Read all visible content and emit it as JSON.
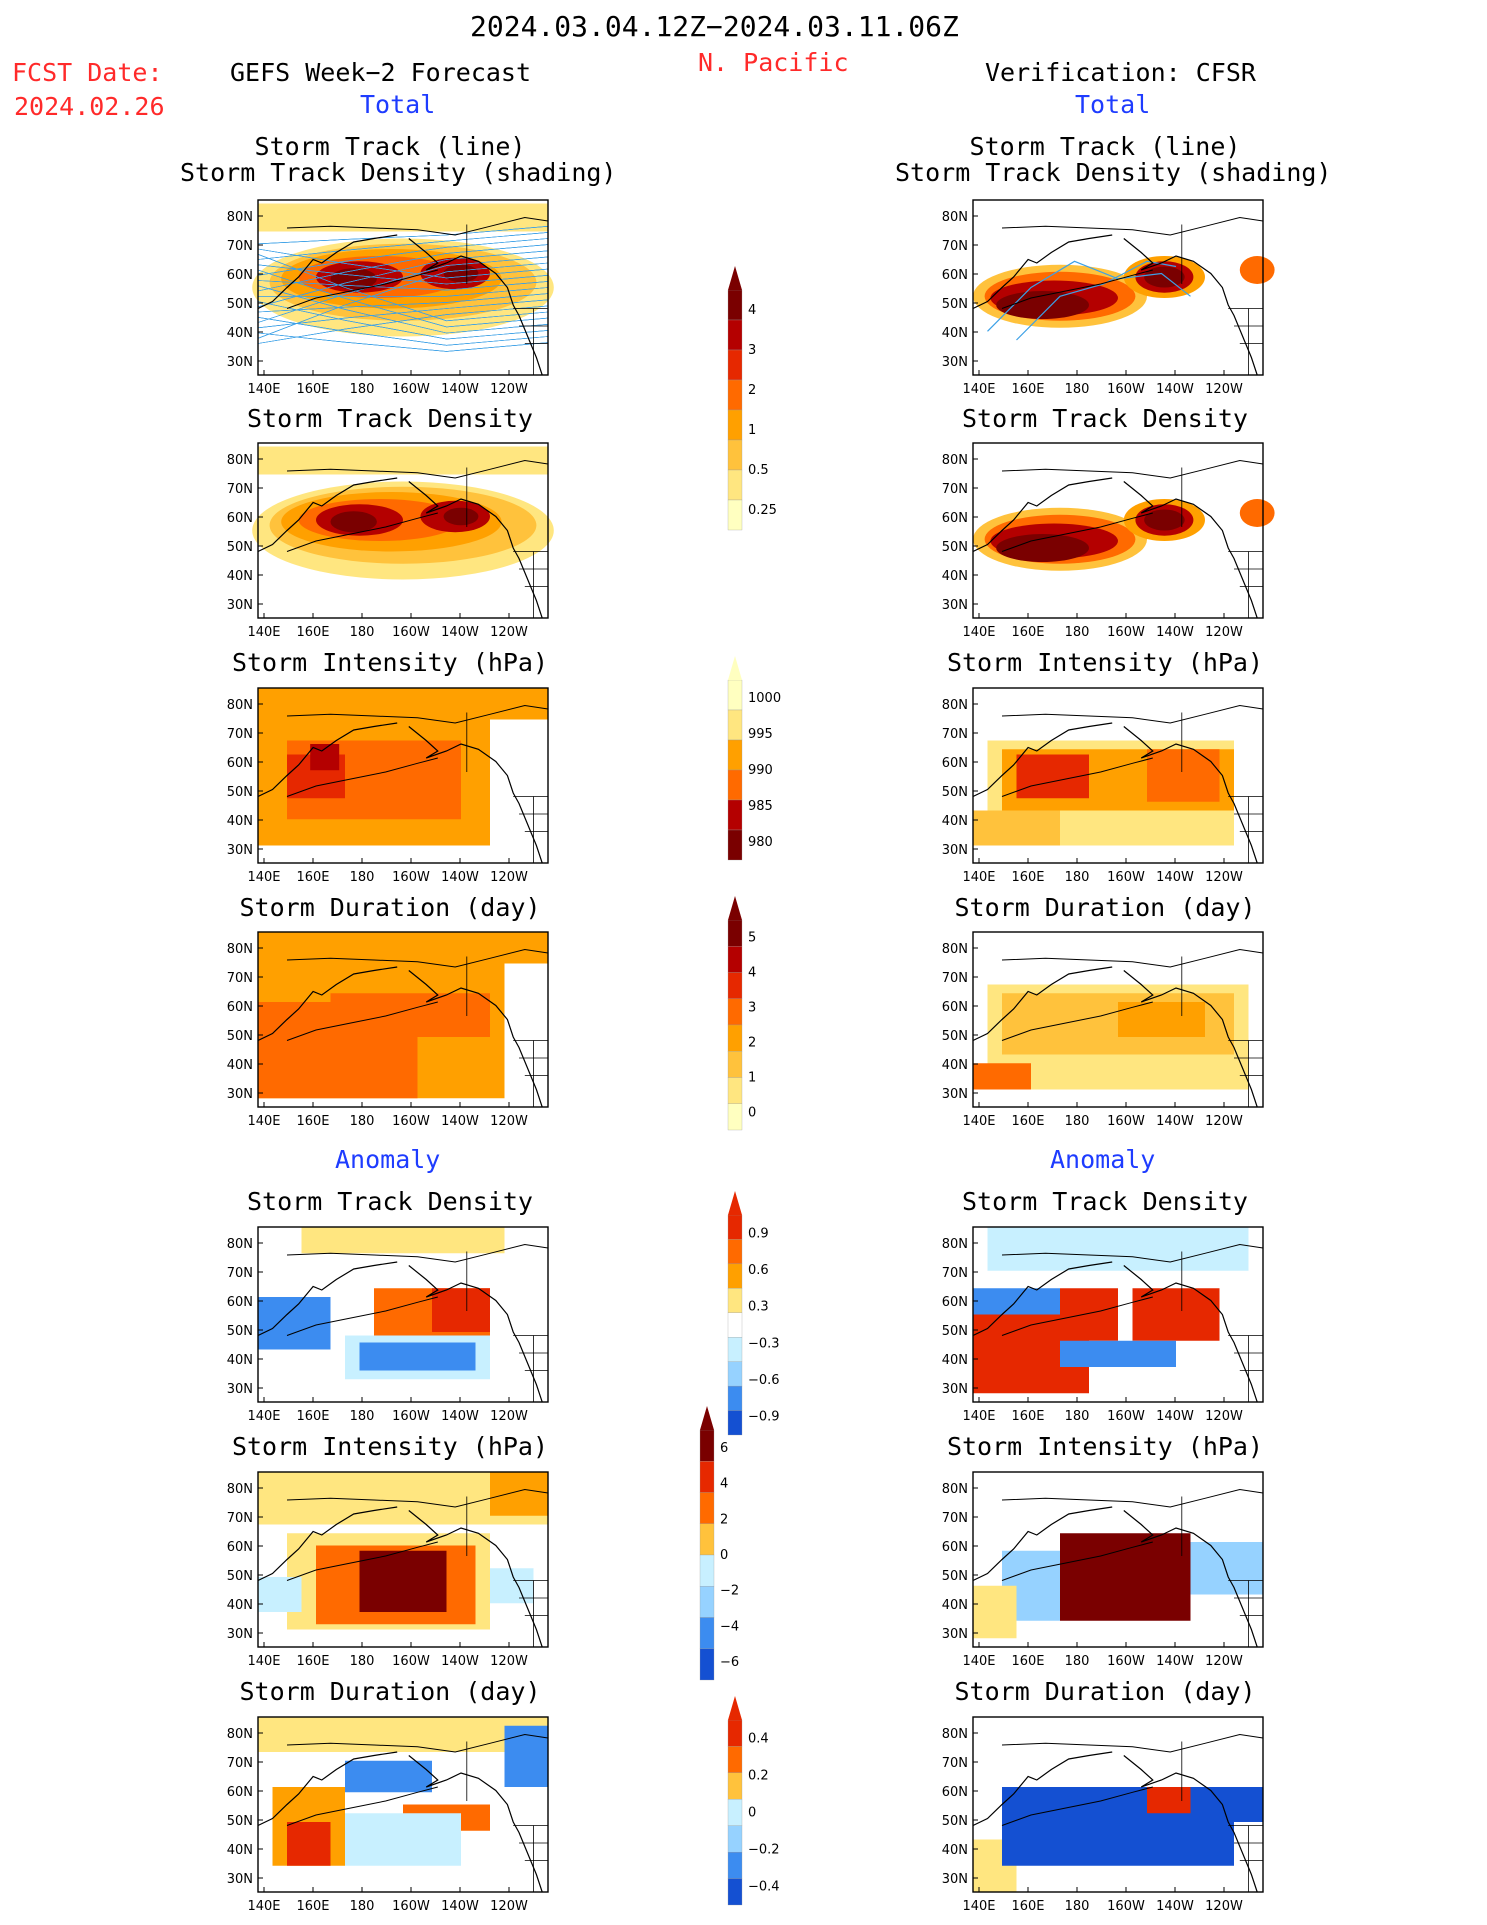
{
  "header": {
    "date_range": "2024.03.04.12Z−2024.03.11.06Z",
    "region": "N. Pacific",
    "fcst_label": "FCST Date:",
    "fcst_date": "2024.02.26",
    "left_title": "GEFS Week−2 Forecast",
    "right_title": "Verification: CFSR",
    "total_label": "Total",
    "anomaly_label": "Anomaly"
  },
  "panels": {
    "track_line_1": "Storm Track (line)",
    "track_line_2": "Storm Track Density (shading)",
    "track_density": "Storm Track Density",
    "intensity": "Storm Intensity (hPa)",
    "duration": "Storm Duration (day)"
  },
  "axes": {
    "lat_labels": [
      "80N",
      "70N",
      "60N",
      "50N",
      "40N",
      "30N"
    ],
    "lon_labels": [
      "140E",
      "160E",
      "180",
      "160W",
      "140W",
      "120W"
    ]
  },
  "colorbars": {
    "density": [
      "0.25",
      "0.5",
      "1",
      "2",
      "3",
      "4"
    ],
    "intensity": [
      "1000",
      "995",
      "990",
      "985",
      "980"
    ],
    "duration": [
      "0",
      "1",
      "2",
      "3",
      "4",
      "5"
    ],
    "anom_density": [
      "0.9",
      "0.6",
      "0.3",
      "−0.3",
      "−0.6",
      "−0.9"
    ],
    "anom_intensity": [
      "6",
      "4",
      "2",
      "0",
      "−2",
      "−4",
      "−6"
    ],
    "anom_duration": [
      "0.4",
      "0.2",
      "0",
      "−0.2",
      "−0.4"
    ]
  },
  "colors": {
    "warm": [
      "#ffffc0",
      "#ffe680",
      "#ffc23c",
      "#ffa000",
      "#ff6a00",
      "#e62800",
      "#b40000",
      "#7a0000"
    ],
    "cool": [
      "#c8f0ff",
      "#96d2ff",
      "#3c8cf0",
      "#1450d2"
    ],
    "track_line": "#3ca0e6",
    "text_red": "#ff2a2a",
    "text_blue": "#1e3cff"
  },
  "chart_data": {
    "type": "heatmap",
    "left_column": "GEFS Week-2 Forecast",
    "right_column": "Verification: CFSR",
    "xlim_labels": [
      "140E",
      "120W"
    ],
    "ylim_labels": [
      "30N",
      "80N"
    ],
    "maps": [
      {
        "title": "Storm Track (line) / Storm Track Density (shading)",
        "section": "Total"
      },
      {
        "title": "Storm Track Density",
        "section": "Total"
      },
      {
        "title": "Storm Intensity (hPa)",
        "section": "Total"
      },
      {
        "title": "Storm Duration (day)",
        "section": "Total"
      },
      {
        "title": "Storm Track Density",
        "section": "Anomaly"
      },
      {
        "title": "Storm Intensity (hPa)",
        "section": "Anomaly"
      },
      {
        "title": "Storm Duration (day)",
        "section": "Anomaly"
      }
    ]
  }
}
